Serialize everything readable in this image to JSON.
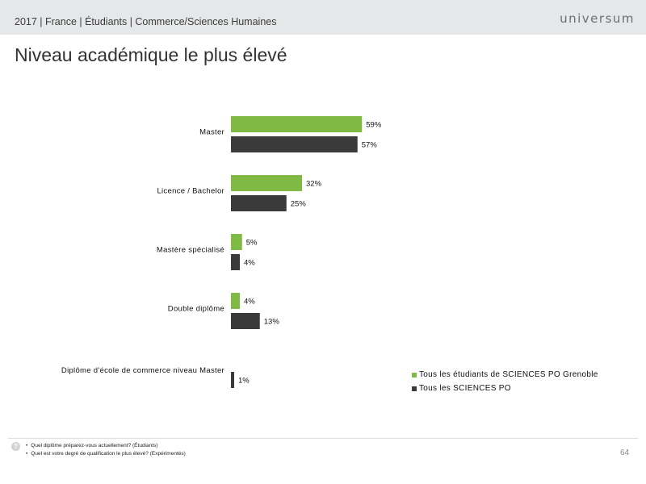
{
  "header": {
    "breadcrumb": "2017 | France | Étudiants | Commerce/Sciences Humaines",
    "logo": "universum"
  },
  "page_title": "Niveau académique le plus élevé",
  "chart_data": {
    "type": "bar",
    "orientation": "horizontal",
    "categories": [
      "Master",
      "Licence / Bachelor",
      "Mastère spécialisé",
      "Double diplôme",
      "Diplôme d'école de commerce niveau Master"
    ],
    "series": [
      {
        "name": "Tous les étudiants de SCIENCES PO Grenoble",
        "color": "#80b944",
        "values": [
          59,
          32,
          5,
          4,
          null
        ]
      },
      {
        "name": "Tous les SCIENCES PO",
        "color": "#3a3a3a",
        "values": [
          57,
          25,
          4,
          13,
          1
        ]
      }
    ],
    "value_suffix": "%",
    "xlim": [
      0,
      100
    ],
    "grid": false,
    "legend_position": "right"
  },
  "footer": {
    "help_icon": "question-icon",
    "notes": [
      "Quel diplôme préparez-vous actuellement? (Étudiants)",
      "Quel est votre degré de qualification le plus élevé? (Expérimentés)"
    ],
    "page_number": "64"
  }
}
